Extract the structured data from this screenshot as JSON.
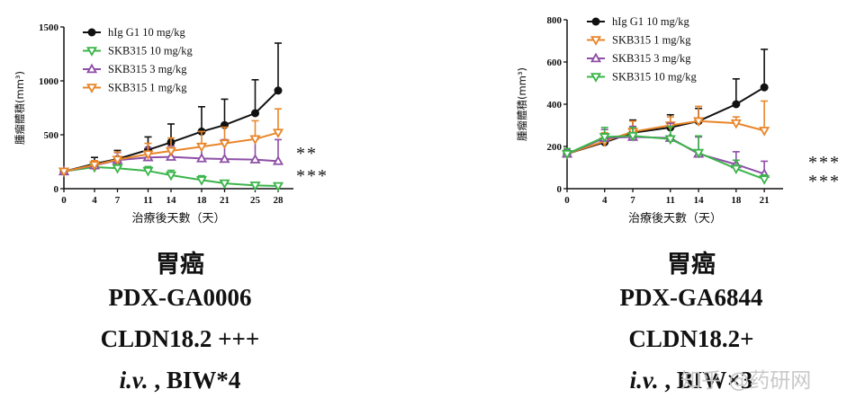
{
  "chart_data": [
    {
      "type": "line",
      "xlabel": "治療後天數（天）",
      "ylabel": "腫瘤體積(mm³)",
      "x_ticks": [
        0,
        4,
        7,
        11,
        14,
        18,
        21,
        25,
        28
      ],
      "y_ticks": [
        0,
        500,
        1000,
        1500
      ],
      "xlim": [
        0,
        30
      ],
      "ylim": [
        0,
        1500
      ],
      "legend_position": "top-left",
      "series": [
        {
          "name": "hIg G1 10 mg/kg",
          "color": "#111111",
          "marker": "circle",
          "x": [
            0,
            4,
            7,
            11,
            14,
            18,
            21,
            25,
            28
          ],
          "y": [
            160,
            230,
            275,
            360,
            430,
            530,
            590,
            700,
            910
          ],
          "err": [
            25,
            60,
            80,
            120,
            170,
            230,
            240,
            310,
            440
          ]
        },
        {
          "name": "SKB315 10 mg/kg",
          "color": "#3bb54a",
          "marker": "triangle-down",
          "x": [
            0,
            4,
            7,
            11,
            14,
            18,
            21,
            25,
            28
          ],
          "y": [
            160,
            200,
            190,
            165,
            125,
            80,
            50,
            30,
            25
          ],
          "err": [
            20,
            30,
            40,
            40,
            45,
            40,
            25,
            15,
            10
          ]
        },
        {
          "name": "SKB315 3 mg/kg",
          "color": "#8e4fa6",
          "marker": "triangle-up",
          "x": [
            0,
            4,
            7,
            11,
            14,
            18,
            21,
            25,
            28
          ],
          "y": [
            160,
            215,
            265,
            290,
            295,
            280,
            275,
            270,
            255
          ],
          "err": [
            20,
            40,
            70,
            90,
            100,
            130,
            180,
            190,
            200
          ]
        },
        {
          "name": "SKB315 1 mg/kg",
          "color": "#e8862a",
          "marker": "triangle-down",
          "x": [
            0,
            4,
            7,
            11,
            14,
            18,
            21,
            25,
            28
          ],
          "y": [
            160,
            220,
            270,
            320,
            350,
            390,
            420,
            460,
            520
          ],
          "err": [
            20,
            40,
            70,
            100,
            120,
            140,
            150,
            170,
            220
          ]
        }
      ],
      "annotations": [
        {
          "text": "**",
          "series": "SKB315 3 mg/kg"
        },
        {
          "text": "***",
          "series": "SKB315 10 mg/kg"
        }
      ]
    },
    {
      "type": "line",
      "xlabel": "治療後天數（天）",
      "ylabel": "腫瘤體積(mm³)",
      "x_ticks": [
        0,
        4,
        7,
        11,
        14,
        18,
        21
      ],
      "y_ticks": [
        0,
        200,
        400,
        600,
        800
      ],
      "xlim": [
        0,
        23
      ],
      "ylim": [
        0,
        800
      ],
      "legend_position": "top-left",
      "series": [
        {
          "name": "hIg G1 10 mg/kg",
          "color": "#111111",
          "marker": "circle",
          "x": [
            0,
            4,
            7,
            11,
            14,
            18,
            21
          ],
          "y": [
            165,
            220,
            265,
            290,
            320,
            400,
            480
          ],
          "err": [
            20,
            40,
            60,
            60,
            60,
            120,
            180
          ]
        },
        {
          "name": "SKB315 1 mg/kg",
          "color": "#e8862a",
          "marker": "triangle-down",
          "x": [
            0,
            4,
            7,
            11,
            14,
            18,
            21
          ],
          "y": [
            165,
            225,
            270,
            300,
            320,
            310,
            275
          ],
          "err": [
            20,
            40,
            50,
            40,
            70,
            30,
            140
          ]
        },
        {
          "name": "SKB315 3 mg/kg",
          "color": "#8e4fa6",
          "marker": "triangle-up",
          "x": [
            0,
            4,
            7,
            11,
            14,
            18,
            21
          ],
          "y": [
            165,
            240,
            245,
            240,
            165,
            115,
            70
          ],
          "err": [
            20,
            40,
            50,
            70,
            80,
            60,
            60
          ]
        },
        {
          "name": "SKB315 10 mg/kg",
          "color": "#3bb54a",
          "marker": "triangle-down",
          "x": [
            0,
            4,
            7,
            11,
            14,
            18,
            21
          ],
          "y": [
            165,
            245,
            250,
            235,
            170,
            95,
            45
          ],
          "err": [
            25,
            45,
            40,
            60,
            80,
            40,
            20
          ]
        }
      ],
      "annotations": [
        {
          "text": "***",
          "series": "SKB315 3 mg/kg"
        },
        {
          "text": "***",
          "series": "SKB315 10 mg/kg"
        }
      ]
    }
  ],
  "captions": [
    {
      "cancer": "胃癌",
      "model": "PDX-GA0006",
      "expression": "CLDN18.2 +++",
      "route_italic": "i.v.",
      "route_rest": " , BIW*4"
    },
    {
      "cancer": "胃癌",
      "model": "PDX-GA6844",
      "expression": "CLDN18.2+",
      "route_italic": "i.v.",
      "route_rest": " , BIW×3"
    }
  ],
  "watermark": "知乎 @药研网"
}
